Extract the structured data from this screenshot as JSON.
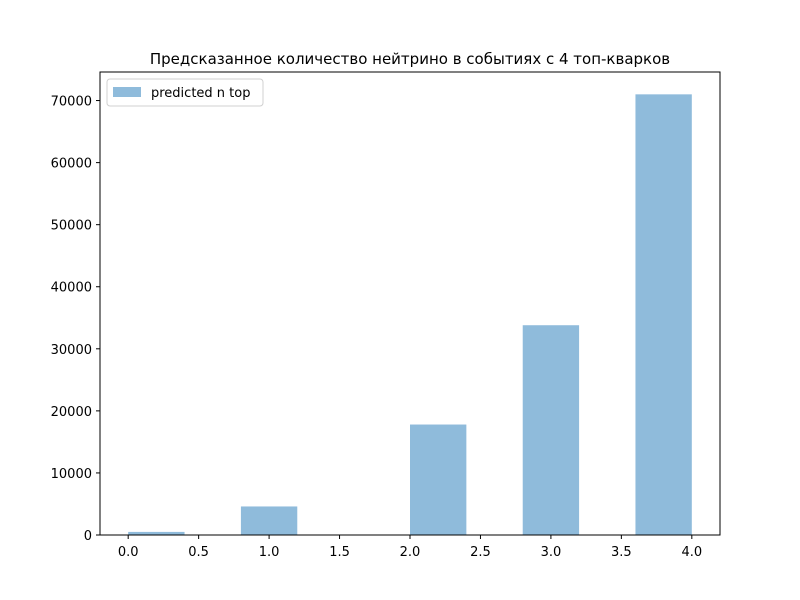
{
  "chart_data": {
    "type": "bar",
    "title": "Предсказанное количество нейтрино в событиях с 4 топ-кварков",
    "xlabel": "",
    "ylabel": "",
    "xlim": [
      -0.2,
      4.2
    ],
    "ylim": [
      0,
      74600
    ],
    "xticks": [
      0.0,
      0.5,
      1.0,
      1.5,
      2.0,
      2.5,
      3.0,
      3.5,
      4.0
    ],
    "xtick_labels": [
      "0.0",
      "0.5",
      "1.0",
      "1.5",
      "2.0",
      "2.5",
      "3.0",
      "3.5",
      "4.0"
    ],
    "yticks": [
      0,
      10000,
      20000,
      30000,
      40000,
      50000,
      60000,
      70000
    ],
    "ytick_labels": [
      "0",
      "10000",
      "20000",
      "30000",
      "40000",
      "50000",
      "60000",
      "70000"
    ],
    "bin_width": 0.4,
    "series": [
      {
        "name": "predicted n top",
        "color": "#8fbbdb",
        "bins": [
          {
            "x0": 0.0,
            "x1": 0.4,
            "value": 500
          },
          {
            "x0": 0.8,
            "x1": 1.2,
            "value": 4600
          },
          {
            "x0": 1.6,
            "x1": 2.0,
            "value": 0
          },
          {
            "x0": 2.0,
            "x1": 2.4,
            "value": 17800
          },
          {
            "x0": 2.8,
            "x1": 3.2,
            "value": 33800
          },
          {
            "x0": 3.6,
            "x1": 4.0,
            "value": 71000
          }
        ]
      }
    ],
    "grid": false,
    "legend_position": "top-left"
  }
}
